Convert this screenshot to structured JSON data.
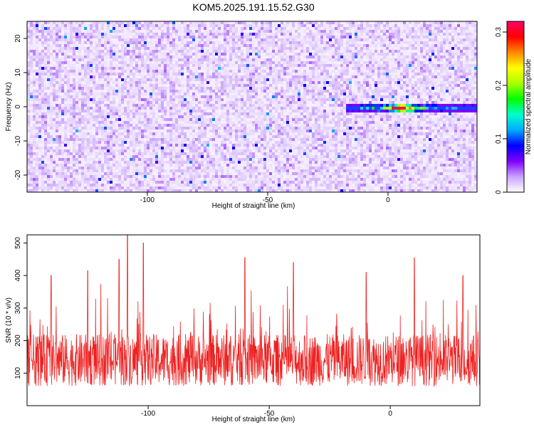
{
  "figure": {
    "title": "KOM5.2025.191.15.52.G30"
  },
  "chart_data": [
    {
      "type": "heatmap",
      "xlabel": "Height of straight line (km)",
      "ylabel": "Frequency (Hz)",
      "xlim": [
        -150,
        37
      ],
      "ylim": [
        -25,
        25
      ],
      "xticks": [
        -100,
        -50,
        0
      ],
      "yticks": [
        -20,
        -10,
        0,
        10,
        20
      ],
      "colorbar": {
        "label": "Normalized spectral amplitude",
        "range": [
          0,
          0.32
        ],
        "ticks": [
          0,
          0.1,
          0.2,
          0.3
        ],
        "colormap": [
          "#ffffff",
          "#c9a2ff",
          "#7f00ff",
          "#0000ff",
          "#00aaff",
          "#00ffcc",
          "#00ff00",
          "#aaff00",
          "#ffff00",
          "#ff8800",
          "#ff0000",
          "#ff0066"
        ]
      },
      "features": [
        {
          "kind": "background",
          "mean_amplitude": 0.03,
          "max_amplitude": 0.12
        },
        {
          "kind": "signal-band",
          "frequency": 0,
          "x_start": -18,
          "x_end": 37,
          "peak_x": 5,
          "peak_amplitude": 0.32
        }
      ]
    },
    {
      "type": "line",
      "xlabel": "Height of straight line (km)",
      "ylabel": "SNR (10 * v/v)",
      "xlim": [
        -150,
        37
      ],
      "ylim": [
        0,
        525
      ],
      "xticks": [
        -100,
        -50,
        0
      ],
      "yticks": [
        100,
        200,
        300,
        400,
        500
      ],
      "series": [
        {
          "color": "#ee2222",
          "baseline": 140,
          "typical_range": [
            50,
            300
          ],
          "peaks": [
            [
              -108.5,
              525
            ],
            [
              -102,
              500
            ],
            [
              -112,
              450
            ],
            [
              -60,
              455
            ],
            [
              10,
              455
            ],
            [
              -140,
              400
            ],
            [
              -125,
              415
            ],
            [
              -40,
              440
            ],
            [
              -10,
              410
            ],
            [
              30,
              400
            ]
          ]
        }
      ]
    }
  ]
}
